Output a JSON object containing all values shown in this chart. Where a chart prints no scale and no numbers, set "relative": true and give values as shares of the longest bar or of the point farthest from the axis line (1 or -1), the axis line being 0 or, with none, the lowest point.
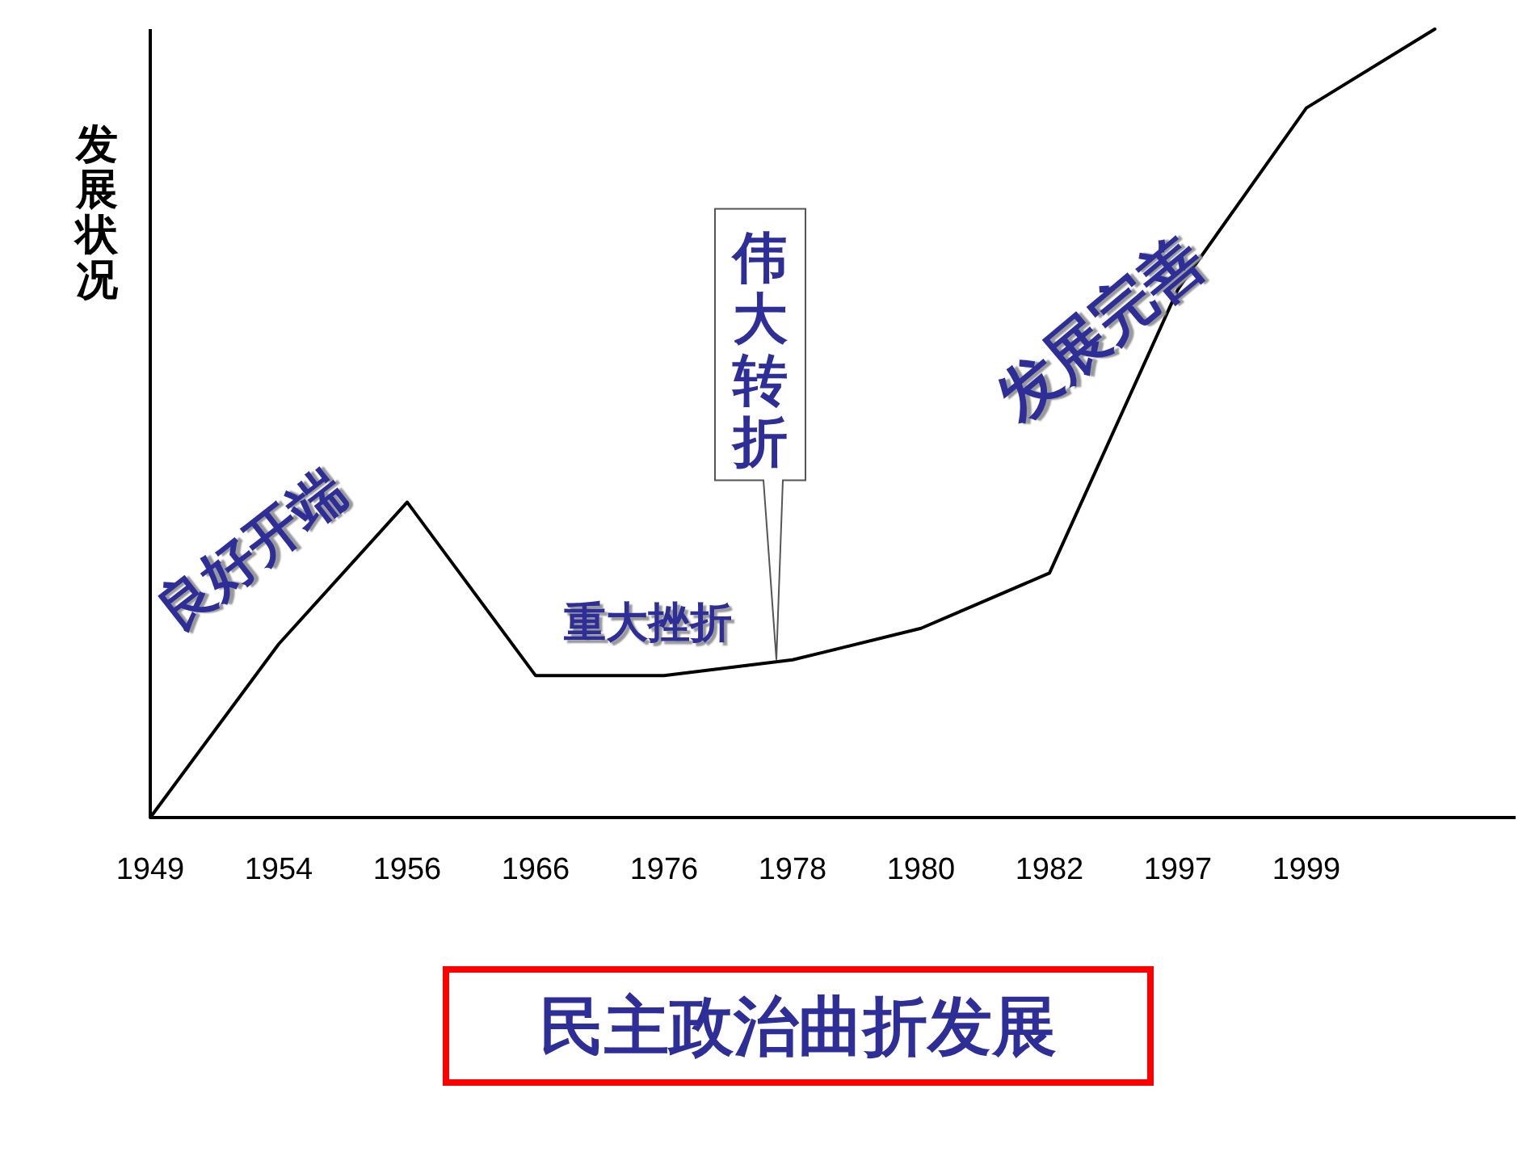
{
  "chart_data": {
    "type": "line",
    "title": "民主政治曲折发展",
    "ylabel": "发展状况",
    "categories": [
      "1949",
      "1954",
      "1956",
      "1966",
      "1976",
      "1978",
      "1980",
      "1982",
      "1997",
      "1999",
      null
    ],
    "values": [
      0,
      0.22,
      0.4,
      0.18,
      0.18,
      0.2,
      0.24,
      0.31,
      0.67,
      0.9,
      1
    ],
    "color": "#000000",
    "relative": true,
    "annotations": [
      "良好开端",
      "重大挫折",
      "伟大转折",
      "发展完善"
    ]
  }
}
